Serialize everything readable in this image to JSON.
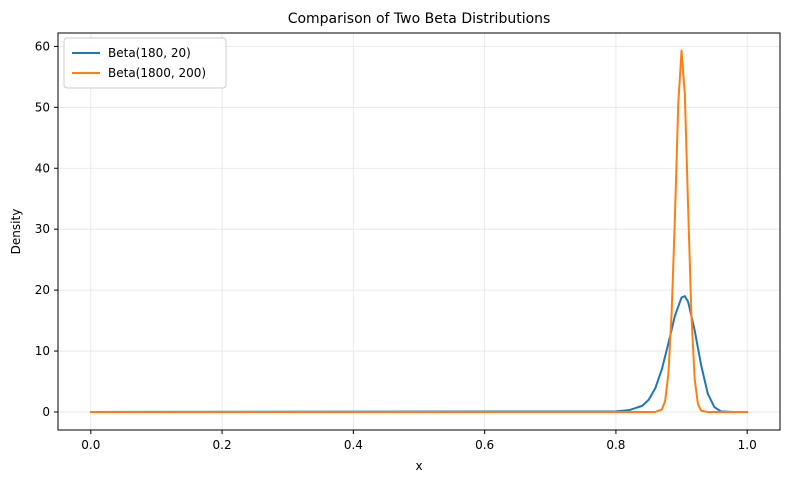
{
  "chart_data": {
    "type": "line",
    "title": "Comparison of Two Beta Distributions",
    "xlabel": "x",
    "ylabel": "Density",
    "xlim": [
      -0.05,
      1.05
    ],
    "ylim": [
      -2.96,
      62.2
    ],
    "xticks": [
      0.0,
      0.2,
      0.4,
      0.6,
      0.8,
      1.0
    ],
    "xtick_labels": [
      "0.0",
      "0.2",
      "0.4",
      "0.6",
      "0.8",
      "1.0"
    ],
    "yticks": [
      0,
      10,
      20,
      30,
      40,
      50,
      60
    ],
    "ytick_labels": [
      "0",
      "10",
      "20",
      "30",
      "40",
      "50",
      "60"
    ],
    "grid": true,
    "legend_position": "upper-left",
    "series": [
      {
        "name": "Beta(180, 20)",
        "color": "#1f77b4",
        "x": [
          0.0,
          0.8,
          0.82,
          0.84,
          0.85,
          0.86,
          0.87,
          0.88,
          0.89,
          0.9,
          0.905,
          0.91,
          0.92,
          0.93,
          0.94,
          0.95,
          0.96,
          0.98,
          1.0
        ],
        "y": [
          0,
          0.1,
          0.3,
          1.0,
          2.0,
          3.9,
          7.0,
          11.3,
          15.8,
          18.8,
          19.0,
          18.1,
          13.4,
          7.6,
          3.0,
          0.8,
          0.1,
          0,
          0
        ]
      },
      {
        "name": "Beta(1800, 200)",
        "color": "#ff7f0e",
        "x": [
          0.0,
          0.86,
          0.87,
          0.875,
          0.88,
          0.885,
          0.89,
          0.895,
          0.9,
          0.905,
          0.91,
          0.915,
          0.92,
          0.925,
          0.93,
          0.94,
          1.0
        ],
        "y": [
          0,
          0,
          0.4,
          1.8,
          6.3,
          16.5,
          32.2,
          50.6,
          59.3,
          52.2,
          33.6,
          16.0,
          5.4,
          1.3,
          0.2,
          0,
          0
        ]
      }
    ]
  }
}
